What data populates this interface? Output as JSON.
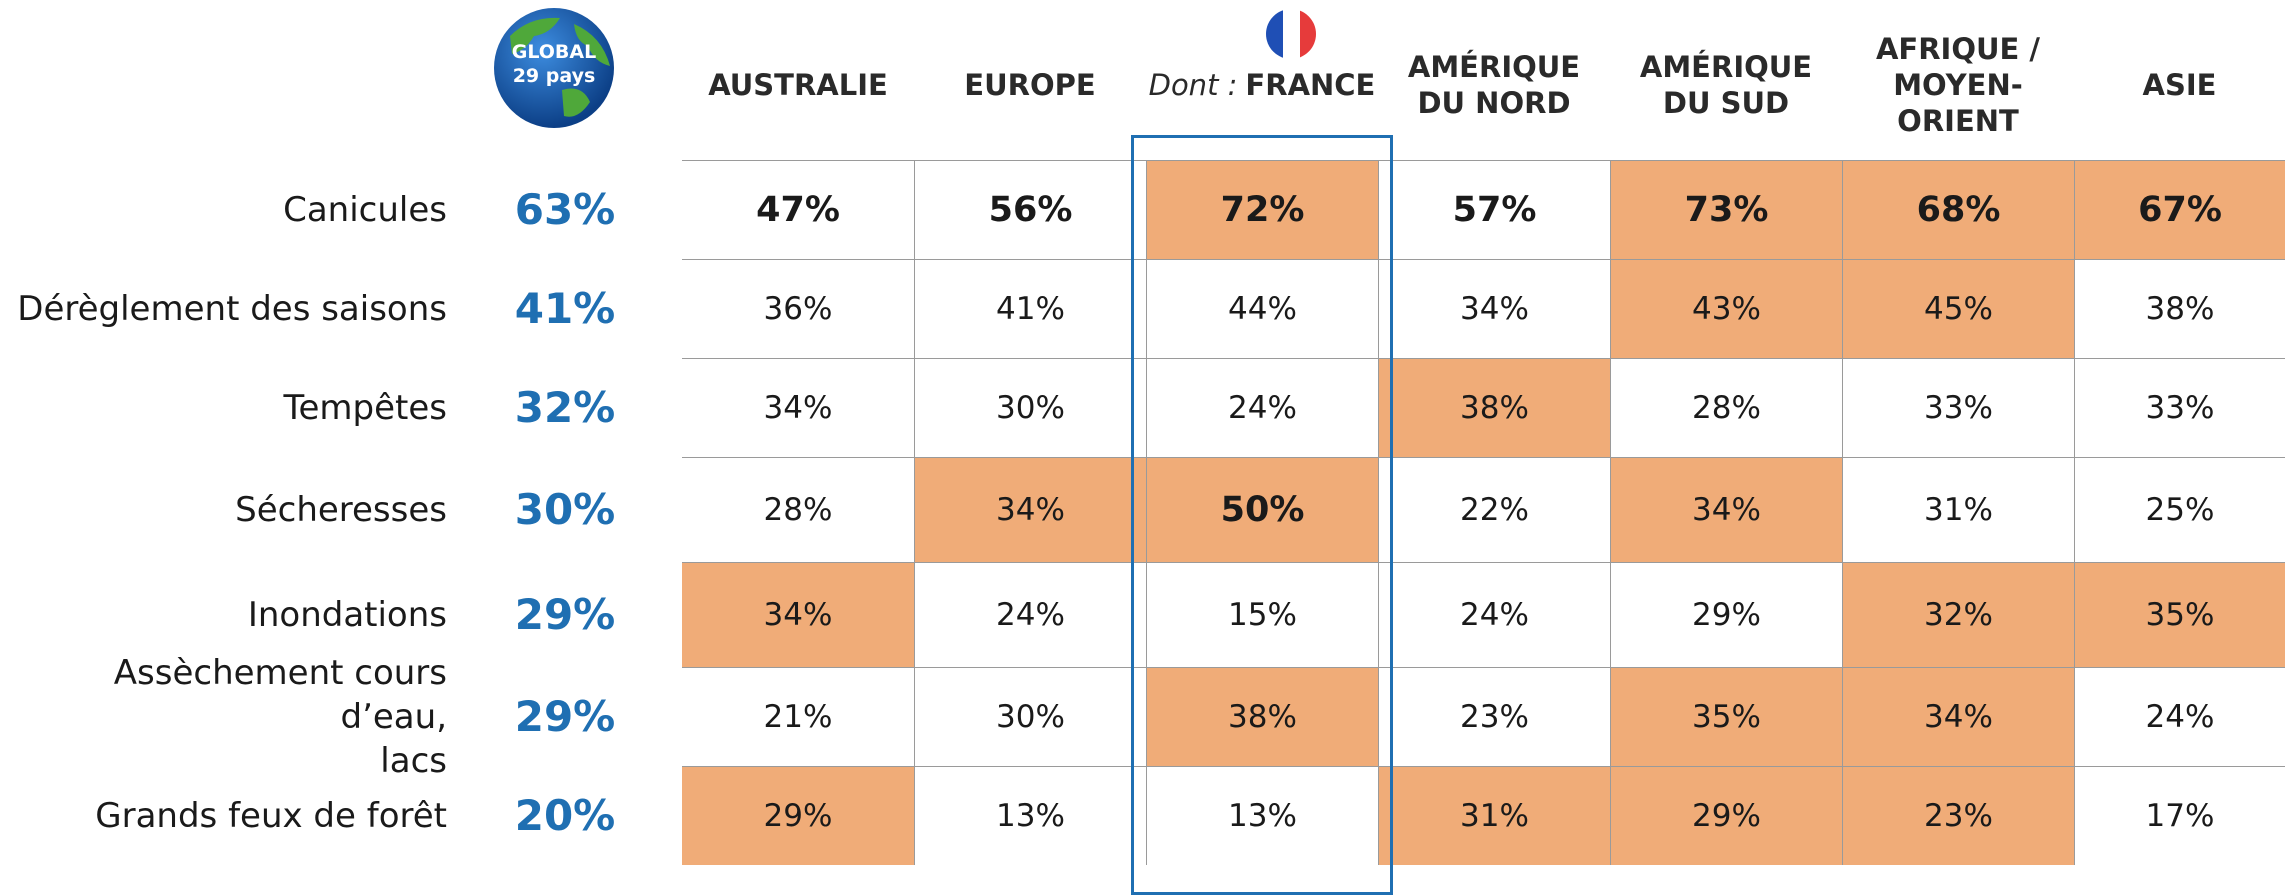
{
  "header": {
    "global": "GLOBAL",
    "global_sub": "29 pays",
    "france_prefix": "Dont :",
    "columns": [
      "AUSTRALIE",
      "EUROPE",
      "FRANCE",
      "AMÉRIQUE\nDU NORD",
      "AMÉRIQUE\nDU SUD",
      "AFRIQUE /\nMOYEN-\nORIENT",
      "ASIE"
    ]
  },
  "table": {
    "rows": [
      {
        "label": "Canicules",
        "global": "63%",
        "values": [
          "47%",
          "56%",
          "72%",
          "57%",
          "73%",
          "68%",
          "67%"
        ],
        "highlighted": [
          2,
          4,
          5,
          6
        ]
      },
      {
        "label": "Dérèglement des saisons",
        "global": "41%",
        "values": [
          "36%",
          "41%",
          "44%",
          "34%",
          "43%",
          "45%",
          "38%"
        ],
        "highlighted": [
          4,
          5
        ]
      },
      {
        "label": "Tempêtes",
        "global": "32%",
        "values": [
          "34%",
          "30%",
          "24%",
          "38%",
          "28%",
          "33%",
          "33%"
        ],
        "highlighted": [
          3
        ]
      },
      {
        "label": "Sécheresses",
        "global": "30%",
        "values": [
          "28%",
          "34%",
          "50%",
          "22%",
          "34%",
          "31%",
          "25%"
        ],
        "highlighted": [
          1,
          2,
          4
        ]
      },
      {
        "label": "Inondations",
        "global": "29%",
        "values": [
          "34%",
          "24%",
          "15%",
          "24%",
          "29%",
          "32%",
          "35%"
        ],
        "highlighted": [
          0,
          5,
          6
        ]
      },
      {
        "label": "Assèchement cours d’eau,\nlacs",
        "global": "29%",
        "values": [
          "21%",
          "30%",
          "38%",
          "23%",
          "35%",
          "34%",
          "24%"
        ],
        "highlighted": [
          2,
          4,
          5
        ]
      },
      {
        "label": "Grands feux de forêt",
        "global": "20%",
        "values": [
          "29%",
          "13%",
          "13%",
          "31%",
          "29%",
          "23%",
          "17%"
        ],
        "highlighted": [
          0,
          3,
          4,
          5
        ]
      }
    ]
  }
}
